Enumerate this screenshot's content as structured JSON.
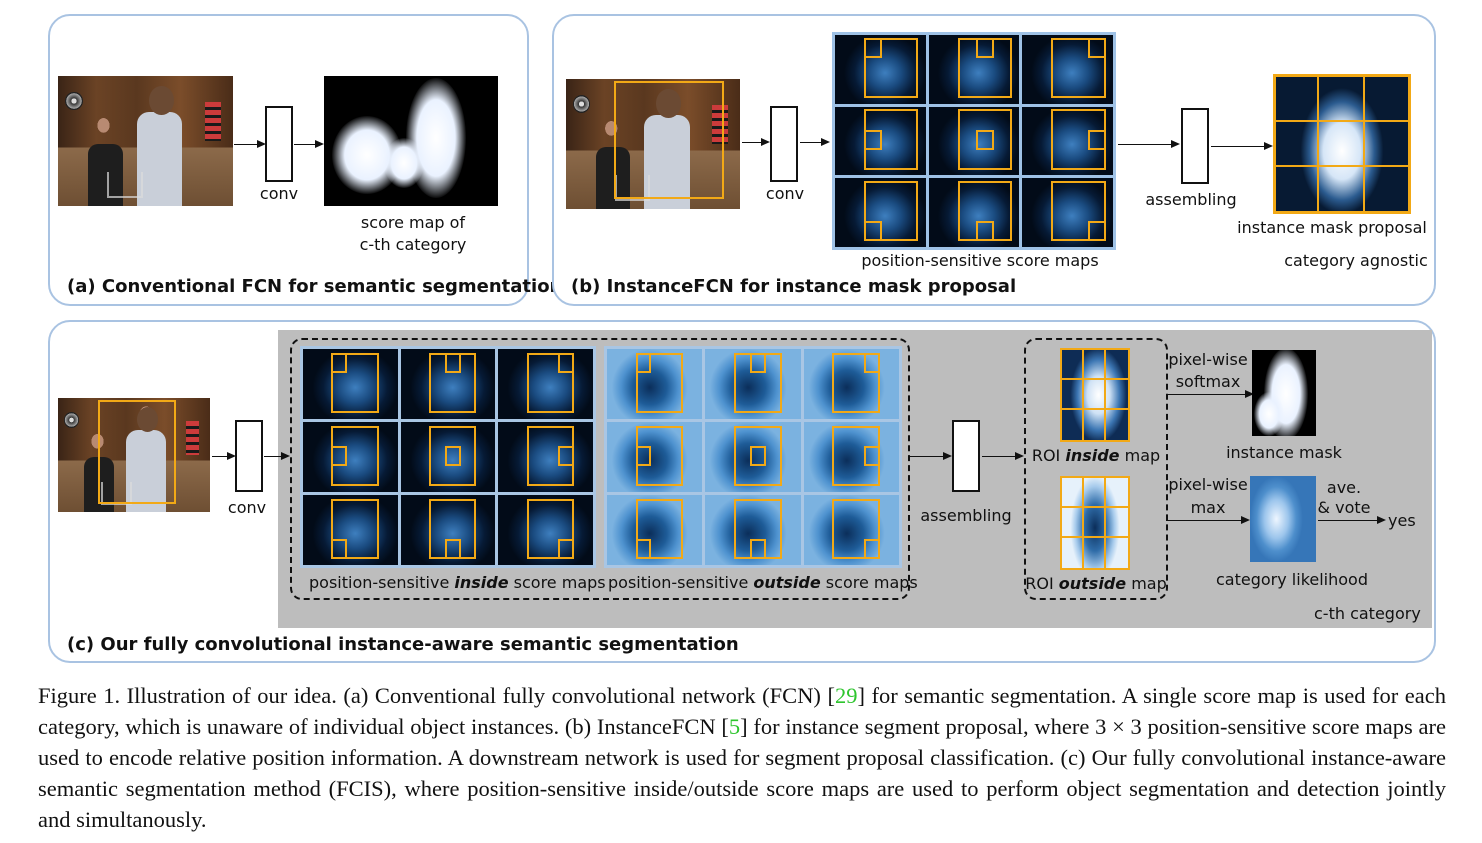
{
  "panel_a": {
    "title": "(a) Conventional FCN for semantic segmentation",
    "conv_label": "conv",
    "score_map_label_line1": "score map of",
    "score_map_label_line2": "c-th category"
  },
  "panel_b": {
    "title": "(b) InstanceFCN for instance mask proposal",
    "conv_label": "conv",
    "score_maps_label": "position-sensitive score maps",
    "assembling_label": "assembling",
    "proposal_label": "instance mask proposal",
    "agnostic_label": "category agnostic"
  },
  "panel_c": {
    "title": "(c) Our fully convolutional instance-aware semantic segmentation",
    "conv_label": "conv",
    "inside_maps_label": {
      "prefix": "position-sensitive ",
      "emph": "inside",
      "suffix": " score maps"
    },
    "outside_maps_label": {
      "prefix": "position-sensitive ",
      "emph": "outside",
      "suffix": " score maps"
    },
    "assembling_label": "assembling",
    "roi_inside_label": {
      "prefix": "ROI ",
      "emph": "inside",
      "suffix": " map"
    },
    "roi_outside_label": {
      "prefix": "ROI ",
      "emph": "outside",
      "suffix": " map"
    },
    "softmax_label_line1": "pixel-wise",
    "softmax_label_line2": "softmax",
    "max_label_line1": "pixel-wise",
    "max_label_line2": "max",
    "instance_mask_label": "instance mask",
    "category_likelihood_label": "category likelihood",
    "vote_label_line1": "ave.",
    "vote_label_line2": "& vote",
    "yes_label": "yes",
    "category_label": "c-th category"
  },
  "caption": {
    "t1": "Figure 1. Illustration of our idea. (a) Conventional fully convolutional network (FCN) [",
    "r1": "29",
    "t2": "] for semantic segmentation. A single score map is used for each category, which is unaware of individual object instances. (b) InstanceFCN [",
    "r2": "5",
    "t3": "] for instance segment proposal, where 3 × 3 position-sensitive score maps are used to encode relative position information. A downstream network is used for segment proposal classification. (c) Our fully convolutional instance-aware semantic segmentation method (FCIS), where position-sensitive inside/outside score maps are used to perform object segmentation and detection jointly and simultanously."
  },
  "colors": {
    "panel_border": "#a9c3e2",
    "roi_box": "#f2a916",
    "gray_region": "#bdbdbd",
    "ref_link": "#2ec52e"
  }
}
